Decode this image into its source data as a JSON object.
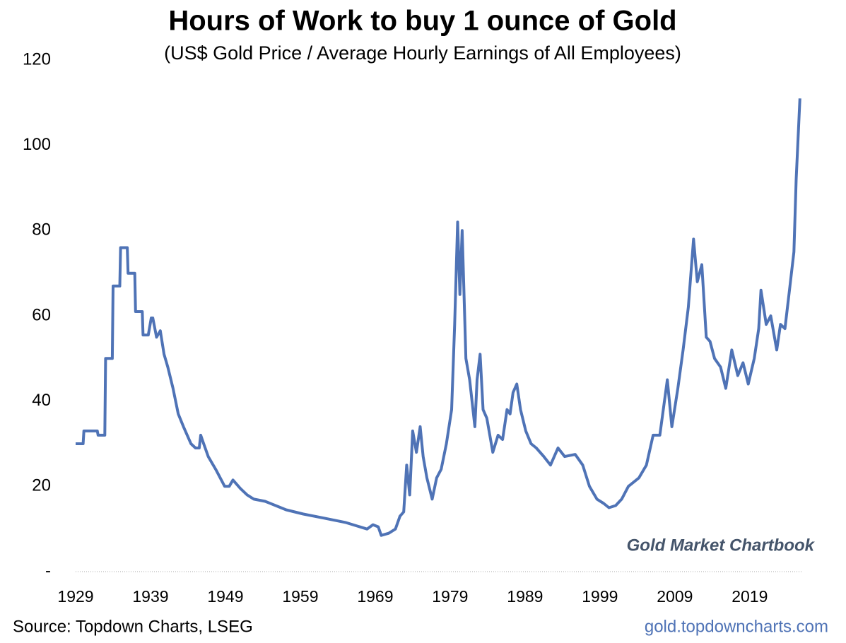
{
  "chart_data": {
    "type": "line",
    "title": "Hours of Work to buy 1 ounce of Gold",
    "subtitle": "(US$ Gold Price / Average Hourly Earnings of All Employees)",
    "annotation": "Gold Market Chartbook",
    "source": "Source: Topdown Charts, LSEG",
    "website": "gold.topdowncharts.com",
    "x": [
      1929,
      1930,
      1930.1,
      1931.9,
      1932,
      1932.9,
      1933,
      1933.9,
      1934,
      1934.9,
      1935,
      1935.9,
      1936,
      1936.9,
      1937,
      1937.9,
      1938,
      1938.7,
      1939.1,
      1939.3,
      1939.8,
      1940.3,
      1940.8,
      1941.3,
      1942,
      1942.7,
      1943.4,
      1944.4,
      1945,
      1945.5,
      1945.7,
      1946.1,
      1946.7,
      1947.7,
      1948.9,
      1949.5,
      1950,
      1951,
      1951.9,
      1952.8,
      1954.3,
      1955.7,
      1957.1,
      1959.4,
      1962.3,
      1965.1,
      1967.9,
      1968.7,
      1969.4,
      1969.8,
      1970.8,
      1971.7,
      1972.3,
      1972.8,
      1973.2,
      1973.6,
      1974,
      1974.5,
      1975,
      1975.4,
      1975.9,
      1976.6,
      1977.2,
      1977.8,
      1978.5,
      1979.2,
      1979.6,
      1980,
      1980.3,
      1980.6,
      1981.1,
      1981.6,
      1982.3,
      1982.6,
      1983,
      1983.4,
      1983.9,
      1984.7,
      1985.4,
      1986,
      1986.6,
      1987,
      1987.4,
      1987.9,
      1988.4,
      1989.1,
      1989.8,
      1990.5,
      1991.5,
      1992.4,
      1993.4,
      1994.3,
      1995.7,
      1996.7,
      1997.6,
      1998.6,
      1999.5,
      2000.2,
      2001.1,
      2001.9,
      2002.8,
      2004.2,
      2005.2,
      2006.1,
      2007,
      2008,
      2008.6,
      2009.4,
      2010.1,
      2010.8,
      2011.5,
      2012,
      2012.6,
      2013.2,
      2013.7,
      2014.3,
      2015.1,
      2015.8,
      2016.6,
      2017.4,
      2018.1,
      2018.8,
      2019.6,
      2020.2,
      2020.5,
      2021.2,
      2021.8,
      2022.6,
      2023.1,
      2023.7,
      2024.3,
      2024.9,
      2025.2,
      2025.7
    ],
    "series": [
      {
        "name": "Hours of work",
        "color": "#4f73b6",
        "values": [
          30,
          30,
          33,
          33,
          32,
          32,
          50,
          50,
          67,
          67,
          76,
          76,
          70,
          70,
          61,
          61,
          55.5,
          55.5,
          59.5,
          59.5,
          55,
          56.5,
          51,
          48,
          43,
          37,
          34,
          30,
          29,
          29,
          32,
          30,
          27,
          24,
          20,
          20,
          21.5,
          19.5,
          18,
          17,
          16.5,
          15.5,
          14.5,
          13.5,
          12.5,
          11.5,
          10,
          11,
          10.5,
          8.5,
          9,
          10,
          13,
          14,
          25,
          18,
          33,
          28,
          34,
          27,
          22,
          17,
          22,
          24,
          30,
          38,
          58,
          82,
          65,
          80,
          50,
          45,
          34,
          45,
          51,
          38,
          36,
          28,
          32,
          31,
          38,
          37,
          42,
          44,
          38,
          33,
          30,
          29,
          27,
          25,
          29,
          27,
          27.5,
          25,
          20,
          17,
          16,
          15,
          15.5,
          17,
          20,
          22,
          25,
          32,
          32,
          45,
          34,
          43,
          52,
          62,
          78,
          68,
          72,
          55,
          54,
          50,
          48,
          43,
          52,
          46,
          49,
          44,
          50,
          57,
          66,
          58,
          60,
          52,
          58,
          57,
          66,
          75,
          92,
          111
        ]
      }
    ],
    "xlim": [
      1929,
      2026
    ],
    "xticks": [
      1929,
      1939,
      1949,
      1959,
      1969,
      1979,
      1989,
      1999,
      2009,
      2019
    ],
    "ylim": [
      0,
      120
    ],
    "yticks": [
      {
        "value": 0,
        "label": "-"
      },
      20,
      40,
      60,
      80,
      100,
      120
    ],
    "grid": false
  }
}
